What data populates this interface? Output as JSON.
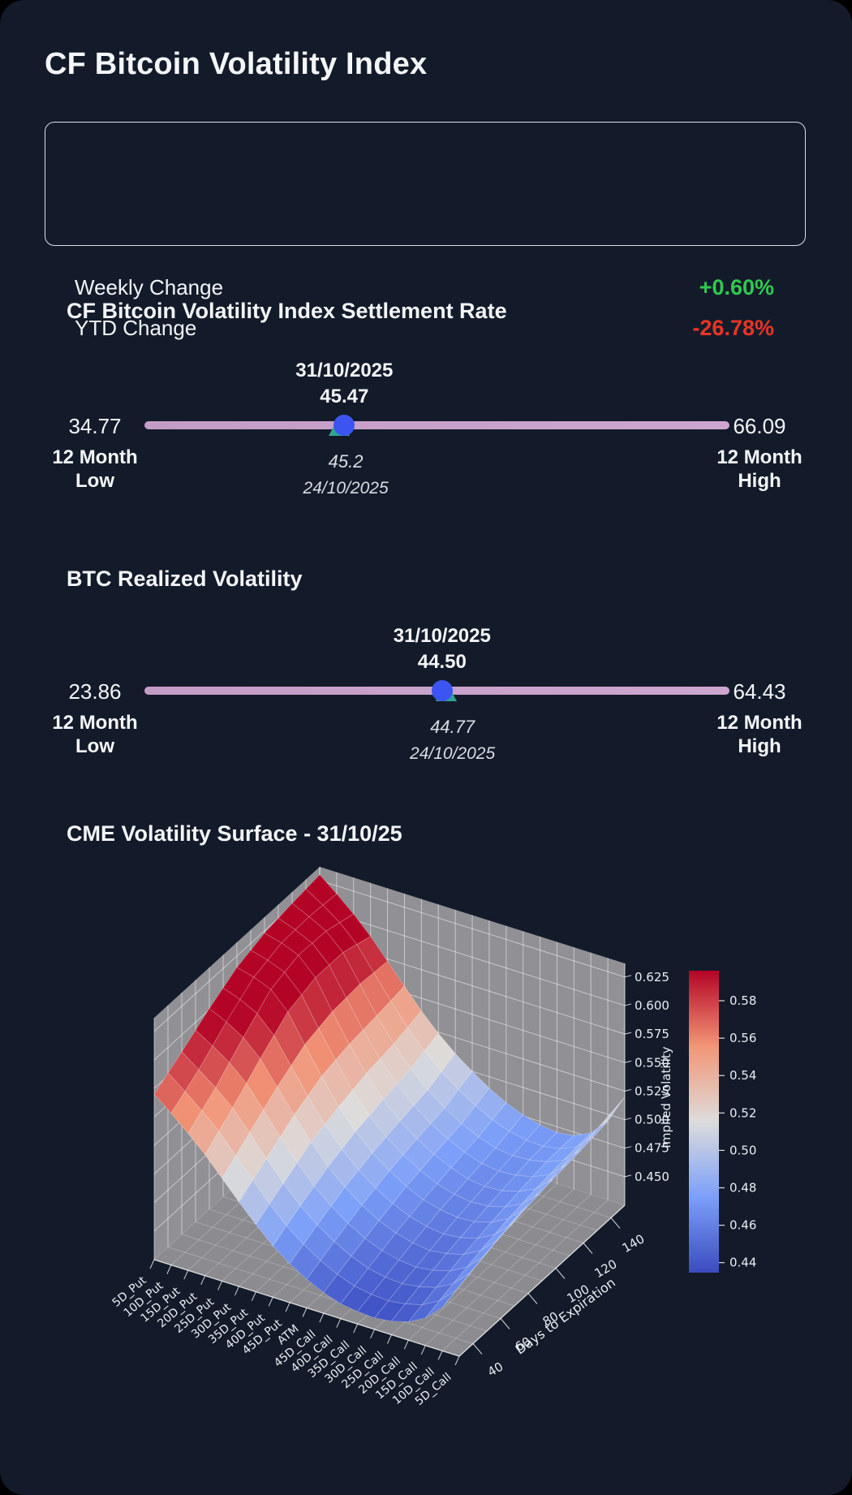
{
  "app": {
    "title": "CF Bitcoin Volatility Index"
  },
  "summary": {
    "rows": [
      {
        "label": "Weekly Change",
        "value": "+0.60%",
        "direction": "up"
      },
      {
        "label": "YTD Change",
        "value": "-26.78%",
        "direction": "down"
      }
    ]
  },
  "colors": {
    "background": "#131b2a",
    "text": "#f4f6fa",
    "positive": "#2fc94f",
    "negative": "#e93425",
    "range_bar": "#c8a1ca",
    "current_marker": "#3c55f2",
    "previous_marker": "#2da693",
    "pane_gray": "#909095",
    "colormap_min": "#3b4cc0",
    "colormap_max": "#b40426"
  },
  "chart_data": [
    {
      "type": "range_indicator",
      "title": "CF Bitcoin Volatility Index Settlement Rate",
      "min": {
        "value": 34.77,
        "display": "34.77",
        "label": "12 Month\nLow"
      },
      "max": {
        "value": 66.09,
        "display": "66.09",
        "label": "12 Month\nHigh"
      },
      "current": {
        "date": "31/10/2025",
        "value": 45.47,
        "display": "45.47"
      },
      "previous": {
        "date": "24/10/2025",
        "value": 45.2,
        "display": "45.2"
      }
    },
    {
      "type": "range_indicator",
      "title": "BTC Realized Volatility",
      "min": {
        "value": 23.86,
        "display": "23.86",
        "label": "12 Month\nLow"
      },
      "max": {
        "value": 64.43,
        "display": "64.43",
        "label": "12 Month\nHigh"
      },
      "current": {
        "date": "31/10/2025",
        "value": 44.5,
        "display": "44.50"
      },
      "previous": {
        "date": "24/10/2025",
        "value": 44.77,
        "display": "44.77"
      }
    },
    {
      "type": "surface",
      "title": "CME Volatility Surface - 31/10/25",
      "x_categories": [
        "5D_Put",
        "10D_Put",
        "15D_Put",
        "20D_Put",
        "25D_Put",
        "30D_Put",
        "35D_Put",
        "40D_Put",
        "45D_Put",
        "ATM",
        "45D_Call",
        "40D_Call",
        "35D_Call",
        "30D_Call",
        "25D_Call",
        "20D_Call",
        "15D_Call",
        "10D_Call",
        "5D_Call"
      ],
      "ylabel": "Days to Expiration",
      "y_values": [
        30,
        50,
        70,
        90,
        110,
        130,
        150
      ],
      "y_ticks": [
        40,
        60,
        80,
        100,
        120,
        140
      ],
      "zlabel": "Implied Volatility",
      "z_ticks": [
        "0.450",
        "0.475",
        "0.500",
        "0.525",
        "0.550",
        "0.575",
        "0.600",
        "0.625"
      ],
      "colorbar_ticks": [
        "0.44",
        "0.46",
        "0.48",
        "0.50",
        "0.52",
        "0.54",
        "0.56",
        "0.58"
      ],
      "colormap": "coolwarm",
      "color_range": [
        0.433,
        0.595
      ],
      "z": [
        [
          0.57,
          0.558,
          0.545,
          0.531,
          0.515,
          0.499,
          0.484,
          0.47,
          0.459,
          0.45,
          0.443,
          0.438,
          0.436,
          0.435,
          0.437,
          0.441,
          0.449,
          0.463,
          0.486
        ],
        [
          0.585,
          0.574,
          0.563,
          0.55,
          0.533,
          0.515,
          0.498,
          0.483,
          0.471,
          0.461,
          0.453,
          0.447,
          0.444,
          0.443,
          0.445,
          0.449,
          0.457,
          0.471,
          0.494
        ],
        [
          0.601,
          0.594,
          0.585,
          0.571,
          0.551,
          0.531,
          0.512,
          0.495,
          0.482,
          0.471,
          0.462,
          0.456,
          0.452,
          0.45,
          0.452,
          0.456,
          0.464,
          0.478,
          0.501
        ],
        [
          0.615,
          0.611,
          0.605,
          0.59,
          0.566,
          0.543,
          0.521,
          0.504,
          0.49,
          0.479,
          0.47,
          0.463,
          0.459,
          0.457,
          0.458,
          0.462,
          0.47,
          0.483,
          0.506
        ],
        [
          0.623,
          0.619,
          0.613,
          0.598,
          0.573,
          0.549,
          0.528,
          0.51,
          0.496,
          0.485,
          0.476,
          0.469,
          0.464,
          0.462,
          0.463,
          0.467,
          0.474,
          0.487,
          0.51
        ],
        [
          0.627,
          0.62,
          0.612,
          0.598,
          0.575,
          0.552,
          0.532,
          0.515,
          0.501,
          0.49,
          0.481,
          0.474,
          0.469,
          0.467,
          0.468,
          0.471,
          0.477,
          0.49,
          0.514
        ],
        [
          0.63,
          0.618,
          0.605,
          0.59,
          0.573,
          0.556,
          0.539,
          0.524,
          0.511,
          0.5,
          0.49,
          0.482,
          0.476,
          0.472,
          0.47,
          0.472,
          0.479,
          0.494,
          0.52
        ]
      ]
    }
  ]
}
